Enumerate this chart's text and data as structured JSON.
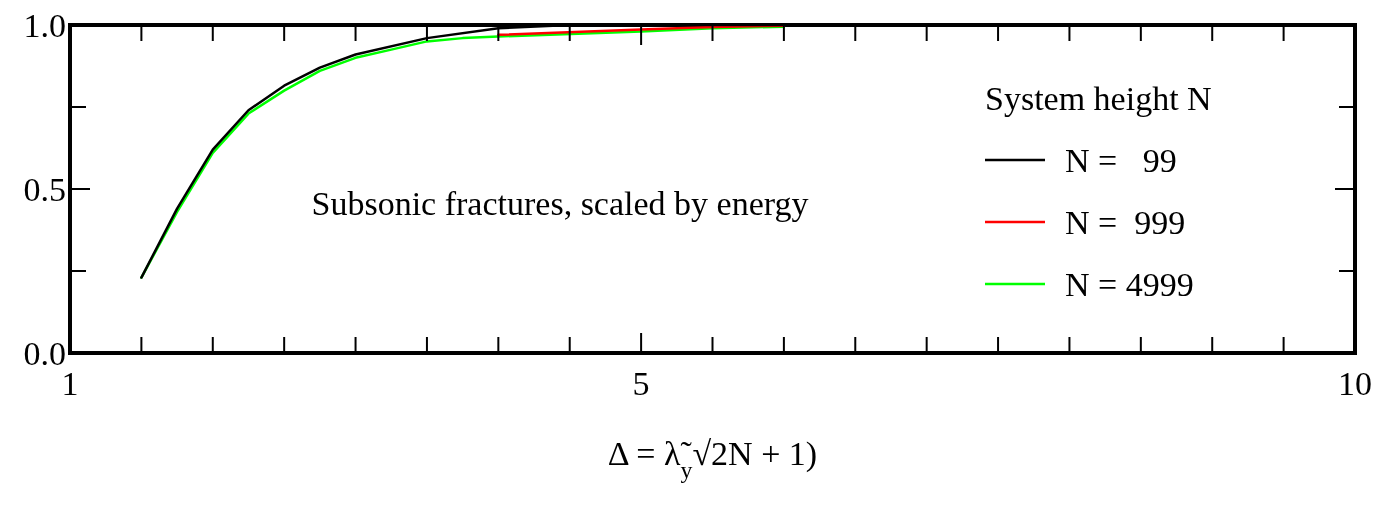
{
  "chart_data": {
    "type": "line",
    "xlabel": "Δ = λ̃$_{y}$√2N + 1)",
    "legend_title": "System height N",
    "xlim": [
      1,
      10
    ],
    "ylim": [
      0,
      1
    ],
    "xticks": [
      1,
      {
        "value": 1.5,
        "label": null
      },
      {
        "value": 2,
        "label": null
      },
      {
        "value": 2.5,
        "label": null
      },
      {
        "value": 3,
        "label": null
      },
      {
        "value": 3.5,
        "label": null
      },
      {
        "value": 4,
        "label": null
      },
      {
        "value": 4.5,
        "label": null
      },
      5,
      {
        "value": 5.5,
        "label": null
      },
      {
        "value": 6,
        "label": null
      },
      {
        "value": 6.5,
        "label": null
      },
      {
        "value": 7,
        "label": null
      },
      {
        "value": 7.5,
        "label": null
      },
      {
        "value": 8,
        "label": null
      },
      {
        "value": 8.5,
        "label": null
      },
      {
        "value": 9,
        "label": null
      },
      {
        "value": 9.5,
        "label": null
      },
      10
    ],
    "yticks": [
      {
        "value": 0,
        "label": "0.0"
      },
      {
        "value": 0.25,
        "label": null
      },
      {
        "value": 0.5,
        "label": "0.5"
      },
      {
        "value": 0.75,
        "label": null
      },
      {
        "value": 1,
        "label": "1.0"
      }
    ],
    "annotations": [
      "Subsonic fractures, scaled by energy"
    ],
    "legend": "right",
    "grid": false,
    "line_style": "solid",
    "series": [
      {
        "name": "N =   99",
        "color": "#000000",
        "x": [
          1.5,
          1.75,
          2,
          2.25,
          2.5,
          2.75,
          3,
          3.5,
          4,
          4.5,
          5,
          6,
          7,
          8
        ],
        "values": [
          0.23,
          0.44,
          0.62,
          0.74,
          0.815,
          0.87,
          0.91,
          0.96,
          0.99,
          1,
          1,
          1,
          1,
          1
        ]
      },
      {
        "name": "N =  999",
        "color": "#ff0000",
        "x": [
          4,
          5,
          5.5,
          6
        ],
        "values": [
          0.97,
          0.986,
          0.994,
          0.998
        ]
      },
      {
        "name": "N = 4999",
        "color": "#00ff00",
        "x": [
          1.5,
          1.75,
          2,
          2.25,
          2.5,
          2.75,
          3,
          3.25,
          3.5,
          3.75,
          4,
          5,
          5.5,
          6
        ],
        "values": [
          0.23,
          0.43,
          0.61,
          0.73,
          0.8,
          0.86,
          0.9,
          0.925,
          0.95,
          0.96,
          0.965,
          0.98,
          0.99,
          0.995
        ]
      }
    ]
  }
}
